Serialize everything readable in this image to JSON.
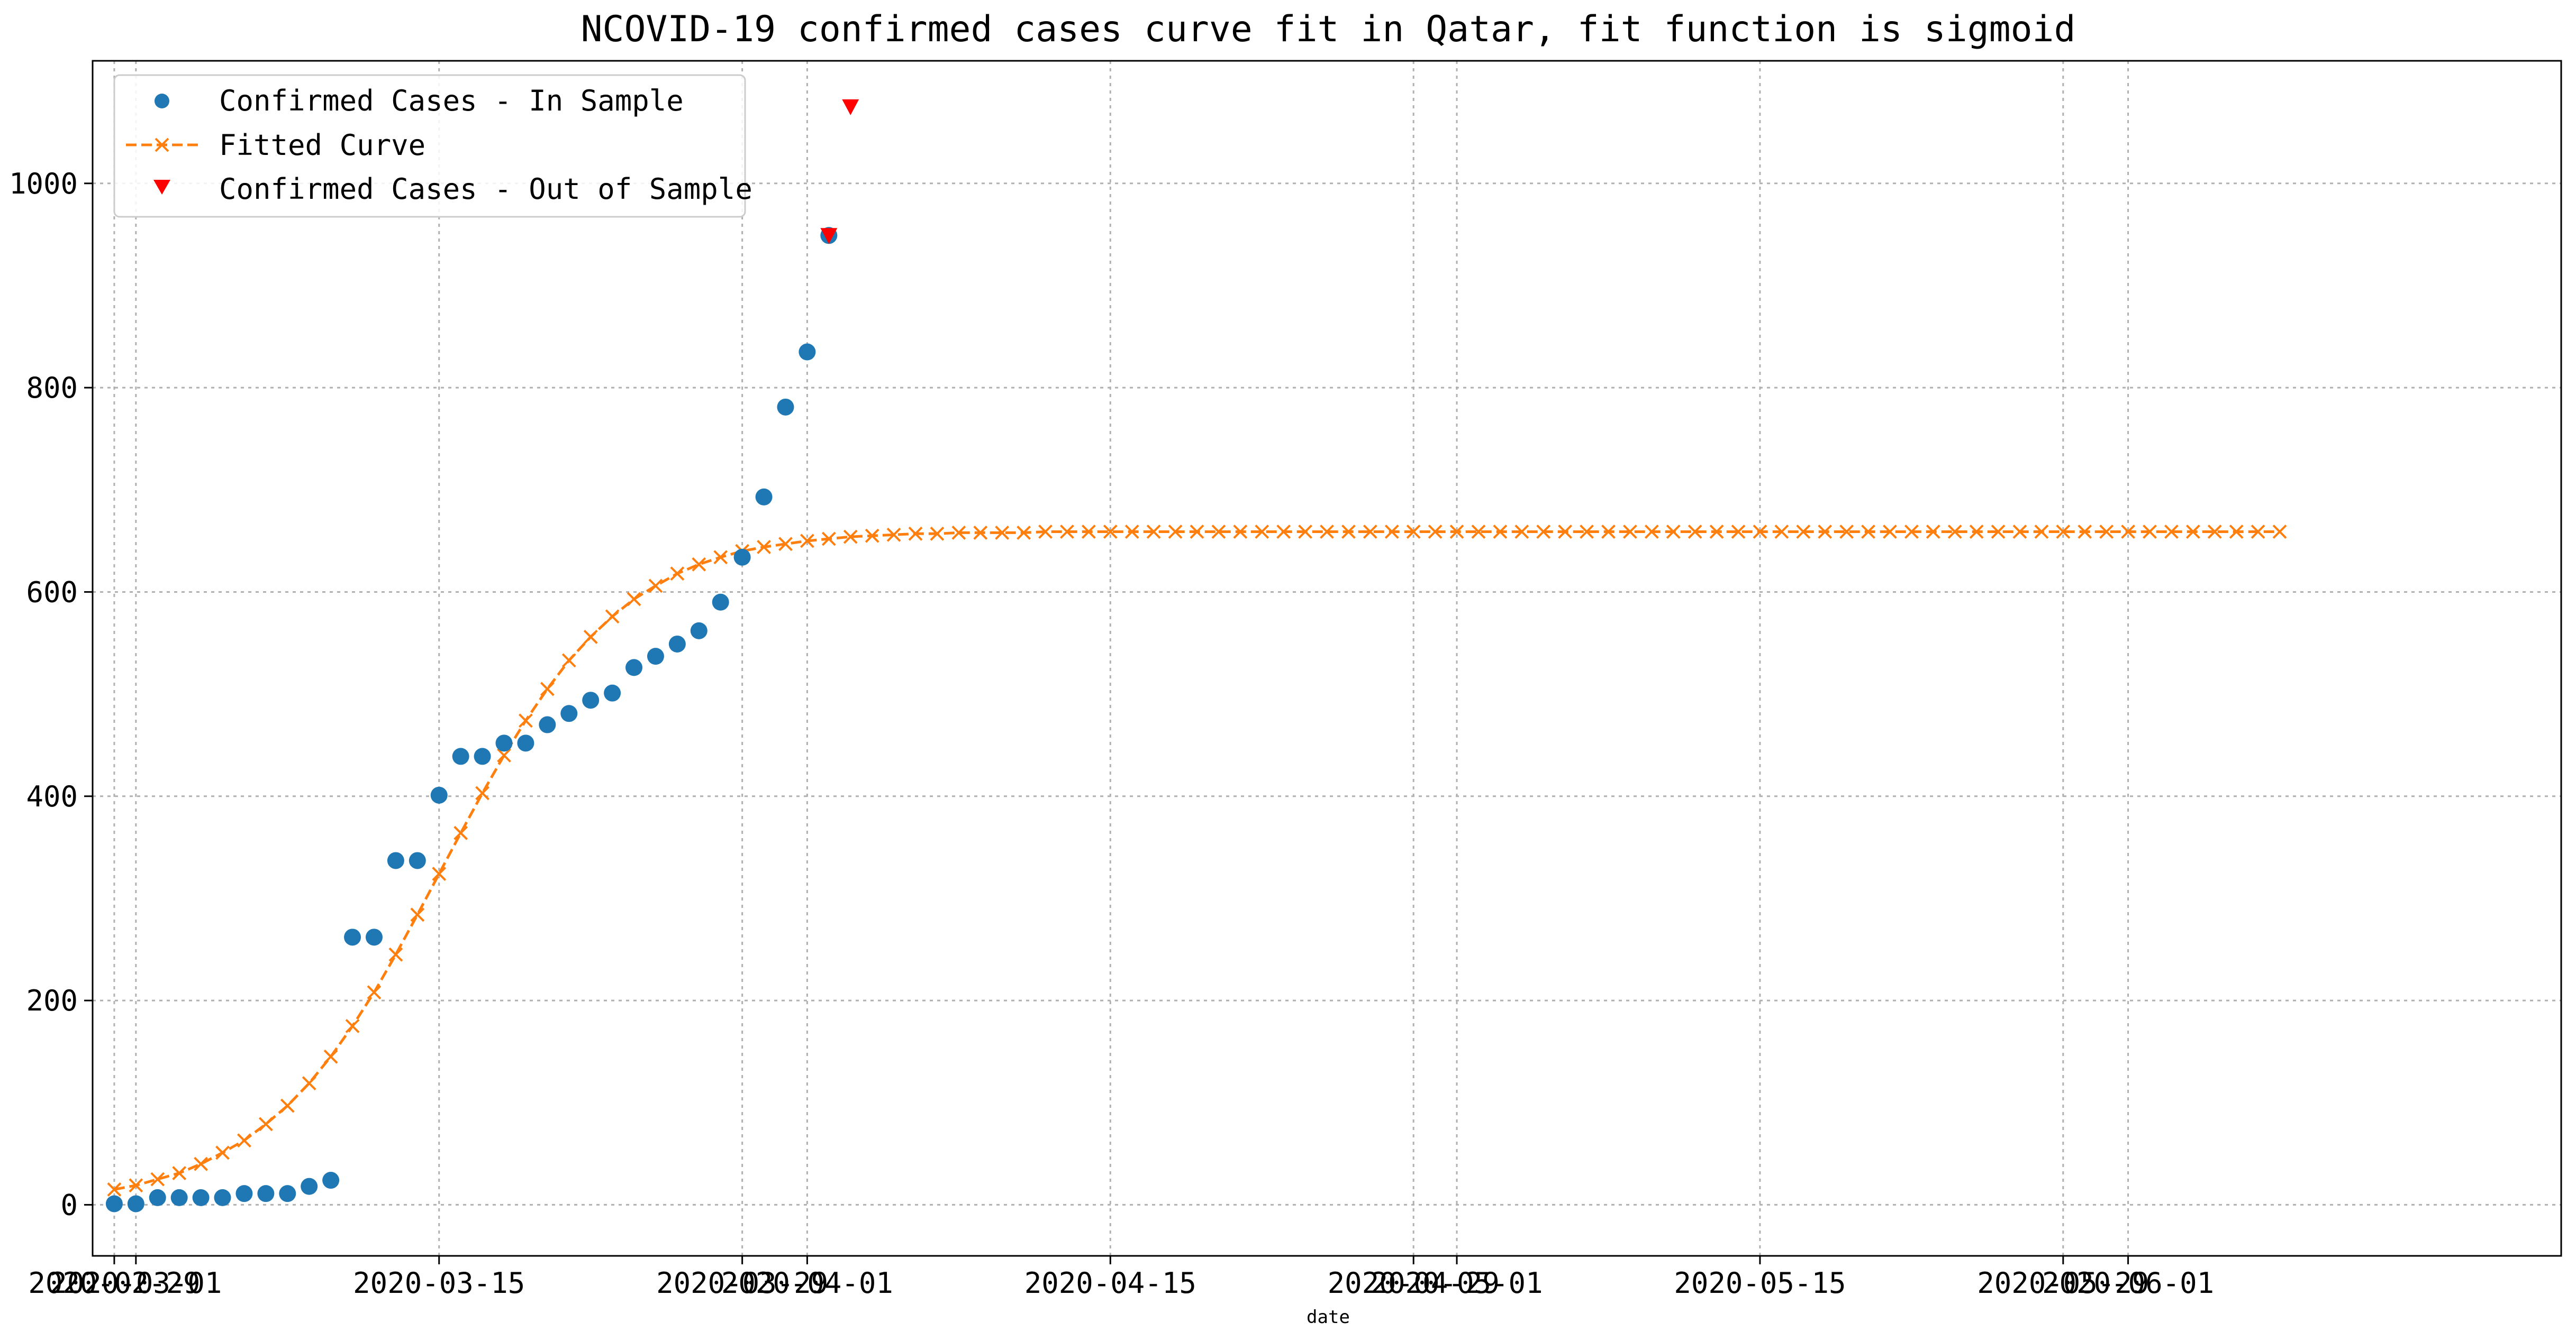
{
  "chart_data": {
    "type": "line",
    "title": "NCOVID-19 confirmed cases curve fit in Qatar, fit function is sigmoid",
    "xlabel": "date",
    "ylabel": "",
    "x_start_label": "2020-02-29",
    "xlim": [
      "2020-02-28",
      "2020-06-21"
    ],
    "ylim": [
      -50,
      1120
    ],
    "grid": true,
    "legend_position": "top-left",
    "x_ticks": [
      {
        "label": "2020-02-29",
        "date": "2020-02-29"
      },
      {
        "label": "2020-03-01",
        "date": "2020-03-01"
      },
      {
        "label": "2020-03-15",
        "date": "2020-03-15"
      },
      {
        "label": "2020-03-29",
        "date": "2020-03-29"
      },
      {
        "label": "2020-04-01",
        "date": "2020-04-01"
      },
      {
        "label": "2020-04-15",
        "date": "2020-04-15"
      },
      {
        "label": "2020-04-29",
        "date": "2020-04-29"
      },
      {
        "label": "2020-05-01",
        "date": "2020-05-01"
      },
      {
        "label": "2020-05-15",
        "date": "2020-05-15"
      },
      {
        "label": "2020-05-29",
        "date": "2020-05-29"
      },
      {
        "label": "2020-06-01",
        "date": "2020-06-01"
      }
    ],
    "y_ticks": [
      {
        "label": "0",
        "value": 0
      },
      {
        "label": "200",
        "value": 200
      },
      {
        "label": "400",
        "value": 400
      },
      {
        "label": "600",
        "value": 600
      },
      {
        "label": "800",
        "value": 800
      },
      {
        "label": "1000",
        "value": 1000
      }
    ],
    "series": [
      {
        "name": "Confirmed Cases - In Sample",
        "style": "scatter",
        "marker": "circle",
        "color": "#1f77b4",
        "x": [
          "2020-02-29",
          "2020-03-01",
          "2020-03-02",
          "2020-03-03",
          "2020-03-04",
          "2020-03-05",
          "2020-03-06",
          "2020-03-07",
          "2020-03-08",
          "2020-03-09",
          "2020-03-10",
          "2020-03-11",
          "2020-03-12",
          "2020-03-13",
          "2020-03-14",
          "2020-03-15",
          "2020-03-16",
          "2020-03-17",
          "2020-03-18",
          "2020-03-19",
          "2020-03-20",
          "2020-03-21",
          "2020-03-22",
          "2020-03-23",
          "2020-03-24",
          "2020-03-25",
          "2020-03-26",
          "2020-03-27",
          "2020-03-28",
          "2020-03-29",
          "2020-03-30",
          "2020-03-31",
          "2020-04-01",
          "2020-04-02"
        ],
        "values": [
          1,
          1,
          7,
          7,
          7,
          7,
          11,
          11,
          11,
          18,
          24,
          262,
          262,
          337,
          337,
          401,
          439,
          439,
          452,
          452,
          470,
          481,
          494,
          501,
          526,
          537,
          549,
          562,
          590,
          634,
          693,
          781,
          835,
          949
        ]
      },
      {
        "name": "Fitted Curve",
        "style": "line",
        "marker": "x",
        "dashed": true,
        "color": "#ff7f0e",
        "x_start": "2020-02-29",
        "x_end": "2020-06-09",
        "L": 659,
        "k": 0.3,
        "x0_day": 17.6,
        "values": [
          15,
          19,
          25,
          31,
          40,
          51,
          63,
          79,
          97,
          119,
          145,
          175,
          208,
          245,
          284,
          324,
          364,
          403,
          440,
          474,
          505,
          533,
          556,
          576,
          593,
          606,
          618,
          627,
          634,
          640,
          644,
          647,
          650,
          652,
          654,
          655,
          656,
          657,
          657,
          658,
          658,
          658,
          658,
          659,
          659,
          659,
          659,
          659,
          659,
          659,
          659,
          659,
          659,
          659,
          659,
          659,
          659,
          659,
          659,
          659,
          659,
          659,
          659,
          659,
          659,
          659,
          659,
          659,
          659,
          659,
          659,
          659,
          659,
          659,
          659,
          659,
          659,
          659,
          659,
          659,
          659,
          659,
          659,
          659,
          659,
          659,
          659,
          659,
          659,
          659,
          659,
          659,
          659,
          659,
          659,
          659,
          659,
          659,
          659,
          659,
          659
        ]
      },
      {
        "name": "Confirmed Cases - Out of Sample",
        "style": "scatter",
        "marker": "triangle-down",
        "color": "#ff0000",
        "x": [
          "2020-04-02",
          "2020-04-03"
        ],
        "values": [
          949,
          1075
        ]
      }
    ]
  }
}
